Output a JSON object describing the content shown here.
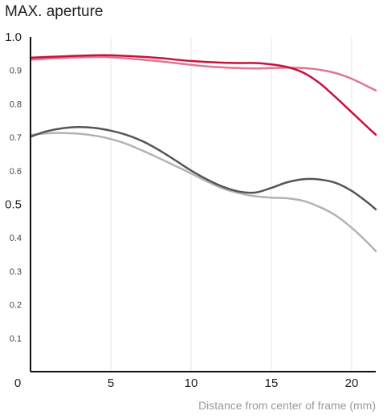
{
  "chart_data": {
    "type": "line",
    "title": "MAX. aperture",
    "xlabel": "Distance from center of frame (mm)",
    "ylabel": "",
    "xlim": [
      0,
      21.5
    ],
    "ylim": [
      0,
      1.0
    ],
    "x_ticks": [
      {
        "value": 0,
        "label": "0"
      },
      {
        "value": 5,
        "label": "5"
      },
      {
        "value": 10,
        "label": "10"
      },
      {
        "value": 15,
        "label": "15"
      },
      {
        "value": 20,
        "label": "20"
      }
    ],
    "y_ticks": [
      {
        "value": 1.0,
        "label": "1.0",
        "major": true
      },
      {
        "value": 0.9,
        "label": "0.9",
        "major": false
      },
      {
        "value": 0.8,
        "label": "0.8",
        "major": false
      },
      {
        "value": 0.7,
        "label": "0.7",
        "major": false
      },
      {
        "value": 0.6,
        "label": "0.6",
        "major": false
      },
      {
        "value": 0.5,
        "label": "0.5",
        "major": true
      },
      {
        "value": 0.4,
        "label": "0.4",
        "major": false
      },
      {
        "value": 0.3,
        "label": "0.3",
        "major": false
      },
      {
        "value": 0.2,
        "label": "0.2",
        "major": false
      },
      {
        "value": 0.1,
        "label": "0.1",
        "major": false
      }
    ],
    "grid": "vertical",
    "series": [
      {
        "color": "#c8103e",
        "width": 2.5,
        "points": [
          [
            0,
            0.938
          ],
          [
            2,
            0.942
          ],
          [
            4,
            0.945
          ],
          [
            5,
            0.945
          ],
          [
            6,
            0.943
          ],
          [
            8,
            0.937
          ],
          [
            10,
            0.928
          ],
          [
            12,
            0.923
          ],
          [
            13,
            0.922
          ],
          [
            14,
            0.922
          ],
          [
            15,
            0.918
          ],
          [
            16,
            0.91
          ],
          [
            17,
            0.893
          ],
          [
            18,
            0.862
          ],
          [
            19,
            0.82
          ],
          [
            20,
            0.775
          ],
          [
            21,
            0.73
          ],
          [
            21.5,
            0.708
          ]
        ]
      },
      {
        "color": "#e0768f",
        "width": 2.5,
        "points": [
          [
            0,
            0.932
          ],
          [
            2,
            0.937
          ],
          [
            4,
            0.94
          ],
          [
            5,
            0.939
          ],
          [
            7,
            0.932
          ],
          [
            9,
            0.922
          ],
          [
            11,
            0.912
          ],
          [
            13,
            0.907
          ],
          [
            14,
            0.906
          ],
          [
            16,
            0.908
          ],
          [
            17,
            0.907
          ],
          [
            18,
            0.902
          ],
          [
            19,
            0.892
          ],
          [
            20,
            0.875
          ],
          [
            21,
            0.852
          ],
          [
            21.5,
            0.84
          ]
        ]
      },
      {
        "color": "#555555",
        "width": 2.5,
        "points": [
          [
            0,
            0.702
          ],
          [
            1,
            0.718
          ],
          [
            2,
            0.727
          ],
          [
            3,
            0.731
          ],
          [
            4,
            0.728
          ],
          [
            5,
            0.72
          ],
          [
            6,
            0.707
          ],
          [
            7,
            0.688
          ],
          [
            8,
            0.662
          ],
          [
            9,
            0.632
          ],
          [
            10,
            0.601
          ],
          [
            11,
            0.574
          ],
          [
            12,
            0.552
          ],
          [
            13,
            0.538
          ],
          [
            14,
            0.535
          ],
          [
            15,
            0.549
          ],
          [
            16,
            0.566
          ],
          [
            17,
            0.575
          ],
          [
            18,
            0.574
          ],
          [
            19,
            0.564
          ],
          [
            20,
            0.54
          ],
          [
            21,
            0.505
          ],
          [
            21.5,
            0.485
          ]
        ]
      },
      {
        "color": "#b3b3b3",
        "width": 2.5,
        "points": [
          [
            0,
            0.707
          ],
          [
            1,
            0.712
          ],
          [
            2,
            0.713
          ],
          [
            3,
            0.711
          ],
          [
            4,
            0.705
          ],
          [
            5,
            0.695
          ],
          [
            6,
            0.68
          ],
          [
            7,
            0.66
          ],
          [
            8,
            0.638
          ],
          [
            9,
            0.615
          ],
          [
            10,
            0.592
          ],
          [
            11,
            0.568
          ],
          [
            12,
            0.547
          ],
          [
            13,
            0.533
          ],
          [
            14,
            0.524
          ],
          [
            15,
            0.52
          ],
          [
            16,
            0.518
          ],
          [
            17,
            0.51
          ],
          [
            18,
            0.492
          ],
          [
            19,
            0.467
          ],
          [
            20,
            0.43
          ],
          [
            21,
            0.385
          ],
          [
            21.5,
            0.36
          ]
        ]
      }
    ]
  }
}
